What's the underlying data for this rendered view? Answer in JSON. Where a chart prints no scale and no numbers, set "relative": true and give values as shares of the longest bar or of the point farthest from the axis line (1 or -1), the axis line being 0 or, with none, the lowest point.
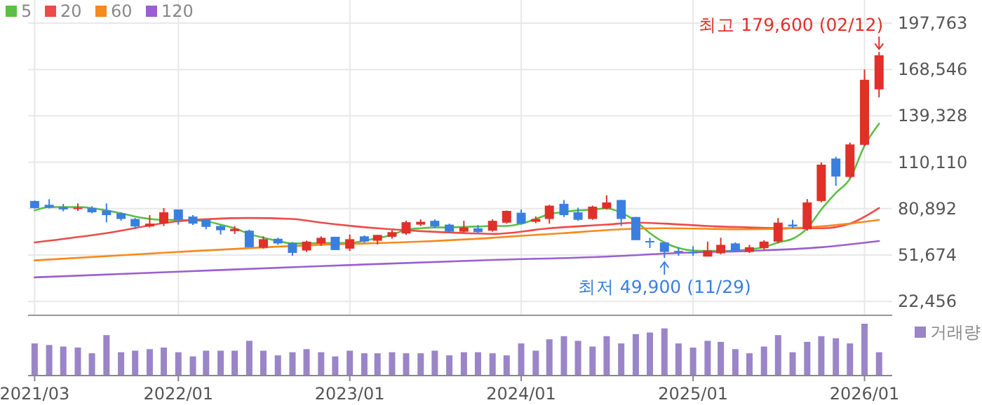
{
  "chart_data": [
    {
      "type": "candlestick",
      "xlim": [
        "2021-02-15",
        "2026-03-01"
      ],
      "xticks": [
        "2021-03",
        "2022-01",
        "2023-01",
        "2024-01",
        "2025-01",
        "2026-01"
      ],
      "ylim": [
        13700,
        212300
      ],
      "yticks": [
        {
          "value": 22456,
          "label": "22,456"
        },
        {
          "value": 51674,
          "label": "51,674"
        },
        {
          "value": 80892,
          "label": "80,892"
        },
        {
          "value": 110110,
          "label": "110,110"
        },
        {
          "value": 139328,
          "label": "139,328"
        },
        {
          "value": 168546,
          "label": "168,546"
        },
        {
          "value": 197763,
          "label": "197,763"
        }
      ],
      "tick_labels": "y",
      "grid": true,
      "legend": "top left",
      "x": [
        "2021-03",
        "2021-04",
        "2021-05",
        "2021-06",
        "2021-07",
        "2021-08",
        "2021-09",
        "2021-10",
        "2021-11",
        "2021-12",
        "2022-01",
        "2022-02",
        "2022-03",
        "2022-04",
        "2022-05",
        "2022-06",
        "2022-07",
        "2022-08",
        "2022-09",
        "2022-10",
        "2022-11",
        "2022-12",
        "2023-01",
        "2023-02",
        "2023-03",
        "2023-04",
        "2023-05",
        "2023-06",
        "2023-07",
        "2023-08",
        "2023-09",
        "2023-10",
        "2023-11",
        "2023-12",
        "2024-01",
        "2024-02",
        "2024-03",
        "2024-04",
        "2024-05",
        "2024-06",
        "2024-07",
        "2024-08",
        "2024-09",
        "2024-10",
        "2024-11",
        "2024-12",
        "2025-01",
        "2025-02",
        "2025-03",
        "2025-04",
        "2025-05",
        "2025-06",
        "2025-07",
        "2025-08",
        "2025-09",
        "2025-10",
        "2025-11",
        "2025-12",
        "2026-01",
        "2026-02"
      ],
      "ohlc": [
        [
          85700,
          86000,
          80800,
          81250
        ],
        [
          83300,
          86800,
          81000,
          81500
        ],
        [
          81900,
          83900,
          79200,
          80400
        ],
        [
          80630,
          84190,
          79470,
          81520
        ],
        [
          81250,
          82400,
          77950,
          78580
        ],
        [
          79730,
          84190,
          72340,
          76790
        ],
        [
          77950,
          78580,
          73230,
          74390
        ],
        [
          74390,
          75010,
          68150,
          69670
        ],
        [
          69670,
          76790,
          69040,
          71450
        ],
        [
          71450,
          81250,
          69940,
          78580
        ],
        [
          80360,
          80360,
          70830,
          73860
        ],
        [
          75900,
          76790,
          70560,
          71450
        ],
        [
          73860,
          74390,
          67890,
          69400
        ],
        [
          69940,
          70560,
          64590,
          67270
        ],
        [
          66730,
          69940,
          64950,
          68150
        ],
        [
          67000,
          67620,
          56570,
          56570
        ],
        [
          56300,
          63430,
          55690,
          61650
        ],
        [
          61910,
          62540,
          58090,
          58980
        ],
        [
          59240,
          59870,
          51230,
          53010
        ],
        [
          54520,
          60760,
          53630,
          60130
        ],
        [
          58980,
          63430,
          57460,
          62540
        ],
        [
          63160,
          63160,
          54790,
          54790
        ],
        [
          55690,
          64590,
          54250,
          61650
        ],
        [
          63430,
          64050,
          59240,
          60130
        ],
        [
          60670,
          64320,
          58360,
          64320
        ],
        [
          63160,
          67360,
          62000,
          66100
        ],
        [
          65210,
          73230,
          64320,
          72340
        ],
        [
          70830,
          74120,
          69940,
          72610
        ],
        [
          73230,
          74120,
          68590,
          69670
        ],
        [
          70830,
          71450,
          65480,
          66370
        ],
        [
          66370,
          73230,
          65930,
          69040
        ],
        [
          68500,
          70560,
          65480,
          66100
        ],
        [
          67000,
          74120,
          66370,
          73230
        ],
        [
          72070,
          79730,
          71450,
          79470
        ],
        [
          78310,
          80360,
          70830,
          71450
        ],
        [
          72610,
          76000,
          71750,
          74390
        ],
        [
          74390,
          83300,
          71450,
          82760
        ],
        [
          83930,
          86330,
          75630,
          76790
        ],
        [
          78580,
          81520,
          73230,
          73860
        ],
        [
          74390,
          82760,
          73860,
          82140
        ],
        [
          80990,
          89270,
          80360,
          84810
        ],
        [
          86330,
          86330,
          69940,
          74390
        ],
        [
          75630,
          75630,
          61030,
          61030
        ],
        [
          60490,
          62540,
          56040,
          59760
        ],
        [
          59600,
          59600,
          49900,
          53630
        ],
        [
          54250,
          56570,
          51230,
          53360
        ],
        [
          53630,
          57200,
          51230,
          52740
        ],
        [
          50700,
          60130,
          50700,
          54520
        ],
        [
          52740,
          62540,
          52150,
          58090
        ],
        [
          58980,
          59600,
          53630,
          54250
        ],
        [
          53630,
          58090,
          53010,
          56570
        ],
        [
          56030,
          61030,
          55140,
          60130
        ],
        [
          60130,
          75000,
          58980,
          72070
        ],
        [
          70830,
          73860,
          68500,
          69670
        ],
        [
          67890,
          86870,
          66990,
          84810
        ],
        [
          85700,
          110020,
          84900,
          108600
        ],
        [
          112430,
          113590,
          95230,
          101120
        ],
        [
          100850,
          122490,
          99950,
          121330
        ],
        [
          121070,
          168550,
          120440,
          162050
        ],
        [
          156000,
          179600,
          151000,
          177500
        ]
      ],
      "series": [
        {
          "name": "5",
          "type": "line",
          "color": "#5cbf45",
          "x": [
            "2021-03",
            "2021-04",
            "2021-05",
            "2021-06",
            "2021-07",
            "2021-08",
            "2021-09",
            "2021-10",
            "2021-11",
            "2021-12",
            "2022-01",
            "2022-02",
            "2022-03",
            "2022-04",
            "2022-05",
            "2022-06",
            "2022-07",
            "2022-08",
            "2022-09",
            "2022-10",
            "2022-11",
            "2022-12",
            "2023-01",
            "2023-02",
            "2023-03",
            "2023-04",
            "2023-05",
            "2023-06",
            "2023-07",
            "2023-08",
            "2023-09",
            "2023-10",
            "2023-11",
            "2023-12",
            "2024-01",
            "2024-02",
            "2024-03",
            "2024-04",
            "2024-05",
            "2024-06",
            "2024-07",
            "2024-08",
            "2024-09",
            "2024-10",
            "2024-11",
            "2024-12",
            "2025-01",
            "2025-02",
            "2025-03",
            "2025-04",
            "2025-05",
            "2025-06",
            "2025-07",
            "2025-08",
            "2025-09",
            "2025-10",
            "2025-11",
            "2025-12",
            "2026-01",
            "2026-02"
          ],
          "values": [
            79730,
            81870,
            81870,
            81870,
            81250,
            79730,
            77950,
            75900,
            74390,
            73860,
            73860,
            73500,
            72970,
            70830,
            68510,
            64950,
            62540,
            60490,
            58980,
            58980,
            59250,
            59250,
            59250,
            60760,
            62270,
            64320,
            67620,
            68510,
            69040,
            69040,
            69400,
            69670,
            69940,
            69940,
            71450,
            74390,
            77420,
            78840,
            79730,
            80360,
            80980,
            78310,
            72970,
            65480,
            59600,
            56040,
            54520,
            54260,
            54260,
            54520,
            55150,
            56570,
            59600,
            61920,
            68510,
            80360,
            90780,
            99690,
            120440,
            134430
          ]
        },
        {
          "name": "20",
          "type": "line",
          "color": "#ec4b4b",
          "x": [
            "2021-03",
            "2021-08",
            "2022-01",
            "2022-06",
            "2022-09",
            "2022-11",
            "2023-03",
            "2023-06",
            "2023-09",
            "2023-11",
            "2024-03",
            "2024-07",
            "2024-09",
            "2024-11",
            "2025-02",
            "2025-05",
            "2025-08",
            "2025-10",
            "2025-12",
            "2026-02"
          ],
          "values": [
            59600,
            65480,
            72970,
            75010,
            74390,
            72070,
            68510,
            66730,
            65480,
            64950,
            68510,
            70830,
            72070,
            71450,
            69940,
            69040,
            68510,
            68510,
            71450,
            81250
          ]
        },
        {
          "name": "60",
          "type": "line",
          "color": "#f58a1f",
          "x": [
            "2021-03",
            "2022-01",
            "2022-11",
            "2023-06",
            "2023-11",
            "2023-12",
            "2024-04",
            "2024-08",
            "2024-11",
            "2025-05",
            "2025-09",
            "2025-12",
            "2026-02"
          ],
          "values": [
            48290,
            53630,
            58090,
            60140,
            62540,
            63170,
            65480,
            67880,
            68510,
            67880,
            69040,
            71450,
            73860
          ]
        },
        {
          "name": "120",
          "type": "line",
          "color": "#9b5fd0",
          "x": [
            "2021-03",
            "2022-01",
            "2022-11",
            "2023-11",
            "2024-07",
            "2024-12",
            "2025-05",
            "2025-10",
            "2026-02"
          ],
          "values": [
            37600,
            41160,
            44730,
            48560,
            50690,
            53010,
            54260,
            56570,
            60490
          ]
        }
      ],
      "annotations": [
        {
          "text": "최고 179,600 (02/12)",
          "x": "2026-02",
          "y": 179600
        },
        {
          "text": "최저 49,900 (11/29)",
          "x": "2024-11",
          "y": 49900
        }
      ]
    },
    {
      "type": "bar",
      "relative": true,
      "tick_labels": "x",
      "legend": "top right",
      "xlim": [
        "2021-02-15",
        "2026-03-01"
      ],
      "xticks": [
        {
          "value": "2021-03",
          "label": "2021/03"
        },
        {
          "value": "2022-01",
          "label": "2022/01"
        },
        {
          "value": "2023-01",
          "label": "2023/01"
        },
        {
          "value": "2024-01",
          "label": "2024/01"
        },
        {
          "value": "2025-01",
          "label": "2025/01"
        },
        {
          "value": "2026-01",
          "label": "2026/01"
        }
      ],
      "x": [
        "2021-03",
        "2021-04",
        "2021-05",
        "2021-06",
        "2021-07",
        "2021-08",
        "2021-09",
        "2021-10",
        "2021-11",
        "2021-12",
        "2022-01",
        "2022-02",
        "2022-03",
        "2022-04",
        "2022-05",
        "2022-06",
        "2022-07",
        "2022-08",
        "2022-09",
        "2022-10",
        "2022-11",
        "2022-12",
        "2023-01",
        "2023-02",
        "2023-03",
        "2023-04",
        "2023-05",
        "2023-06",
        "2023-07",
        "2023-08",
        "2023-09",
        "2023-10",
        "2023-11",
        "2023-12",
        "2024-01",
        "2024-02",
        "2024-03",
        "2024-04",
        "2024-05",
        "2024-06",
        "2024-07",
        "2024-08",
        "2024-09",
        "2024-10",
        "2024-11",
        "2024-12",
        "2025-01",
        "2025-02",
        "2025-03",
        "2025-04",
        "2025-05",
        "2025-06",
        "2025-07",
        "2025-08",
        "2025-09",
        "2025-10",
        "2025-11",
        "2025-12",
        "2026-01",
        "2026-02"
      ],
      "series": [
        {
          "name": "거래량",
          "color": "#9a85c8",
          "values": [
            0.62,
            0.59,
            0.56,
            0.54,
            0.43,
            0.78,
            0.45,
            0.48,
            0.51,
            0.54,
            0.45,
            0.37,
            0.48,
            0.48,
            0.48,
            0.67,
            0.48,
            0.39,
            0.45,
            0.51,
            0.45,
            0.37,
            0.48,
            0.43,
            0.43,
            0.45,
            0.43,
            0.43,
            0.48,
            0.39,
            0.45,
            0.45,
            0.43,
            0.39,
            0.62,
            0.48,
            0.7,
            0.76,
            0.67,
            0.56,
            0.76,
            0.62,
            0.8,
            0.83,
            0.91,
            0.62,
            0.54,
            0.67,
            0.65,
            0.51,
            0.43,
            0.56,
            0.78,
            0.45,
            0.65,
            0.76,
            0.72,
            0.62,
            1,
            0.45
          ]
        }
      ]
    }
  ]
}
